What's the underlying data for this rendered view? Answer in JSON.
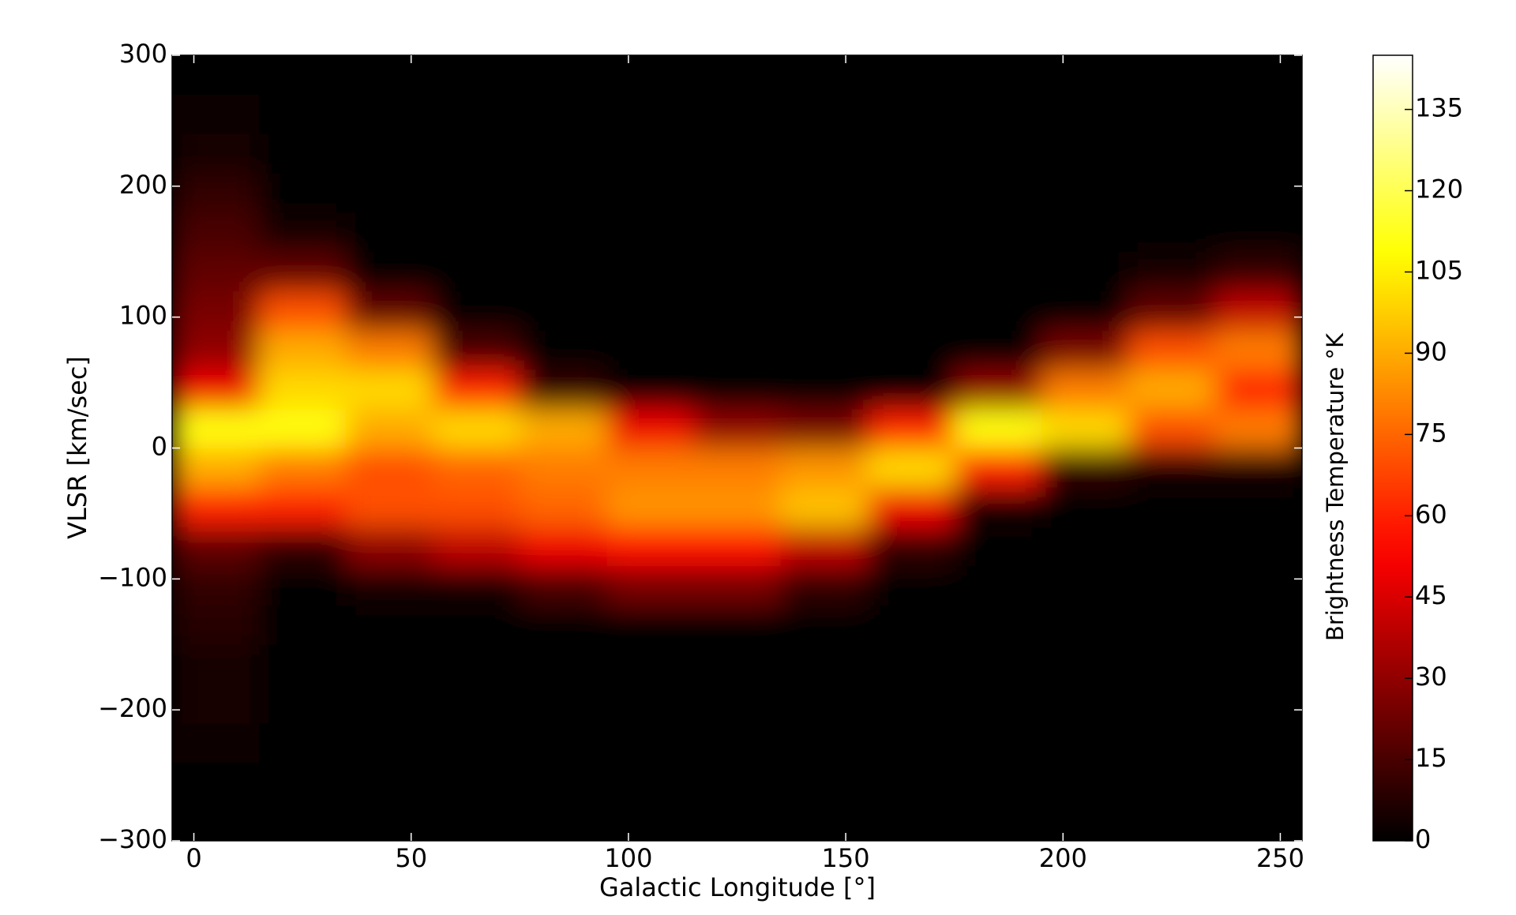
{
  "chart_data": {
    "type": "heatmap",
    "xlabel": "Galactic Longitude [°]",
    "ylabel": "VLSR [km/sec]",
    "colorbar_label": "Brightness Temperature °K",
    "colormap": "hot",
    "x_bins": [
      -5,
      15,
      35,
      55,
      75,
      95,
      115,
      135,
      155,
      175,
      195,
      215,
      235,
      255
    ],
    "y_bins": [
      -300,
      -270,
      -240,
      -210,
      -180,
      -150,
      -120,
      -90,
      -60,
      -30,
      0,
      30,
      60,
      90,
      120,
      150,
      180,
      210,
      240,
      270,
      300
    ],
    "values": [
      [
        0,
        0,
        0,
        0,
        0,
        0,
        0,
        0,
        0,
        0,
        0,
        0,
        0
      ],
      [
        0,
        0,
        0,
        0,
        0,
        0,
        0,
        0,
        0,
        0,
        0,
        0,
        0
      ],
      [
        3,
        0,
        0,
        0,
        0,
        0,
        0,
        0,
        0,
        0,
        0,
        0,
        0
      ],
      [
        5,
        0,
        0,
        0,
        0,
        0,
        0,
        0,
        0,
        0,
        0,
        0,
        0
      ],
      [
        5,
        0,
        0,
        0,
        0,
        0,
        0,
        0,
        0,
        0,
        0,
        0,
        0
      ],
      [
        8,
        0,
        0,
        0,
        0,
        0,
        0,
        0,
        0,
        0,
        0,
        0,
        0
      ],
      [
        10,
        0,
        5,
        5,
        15,
        25,
        25,
        10,
        0,
        0,
        0,
        0,
        0
      ],
      [
        20,
        10,
        30,
        40,
        50,
        55,
        55,
        40,
        10,
        0,
        0,
        0,
        0
      ],
      [
        60,
        60,
        70,
        70,
        75,
        85,
        85,
        95,
        50,
        5,
        0,
        0,
        0
      ],
      [
        90,
        80,
        70,
        75,
        80,
        80,
        80,
        85,
        100,
        60,
        10,
        5,
        5
      ],
      [
        110,
        110,
        90,
        100,
        90,
        50,
        30,
        25,
        60,
        110,
        100,
        70,
        80
      ],
      [
        50,
        100,
        100,
        60,
        10,
        0,
        0,
        0,
        0,
        30,
        80,
        90,
        60
      ],
      [
        30,
        90,
        80,
        15,
        0,
        0,
        0,
        0,
        0,
        0,
        25,
        70,
        80
      ],
      [
        25,
        70,
        20,
        0,
        0,
        0,
        0,
        0,
        0,
        0,
        0,
        20,
        40
      ],
      [
        20,
        20,
        0,
        0,
        0,
        0,
        0,
        0,
        0,
        0,
        0,
        5,
        10
      ],
      [
        15,
        5,
        0,
        0,
        0,
        0,
        0,
        0,
        0,
        0,
        0,
        0,
        0
      ],
      [
        10,
        0,
        0,
        0,
        0,
        0,
        0,
        0,
        0,
        0,
        0,
        0,
        0
      ],
      [
        5,
        0,
        0,
        0,
        0,
        0,
        0,
        0,
        0,
        0,
        0,
        0,
        0
      ],
      [
        3,
        0,
        0,
        0,
        0,
        0,
        0,
        0,
        0,
        0,
        0,
        0,
        0
      ],
      [
        0,
        0,
        0,
        0,
        0,
        0,
        0,
        0,
        0,
        0,
        0,
        0,
        0
      ]
    ],
    "xlim": [
      -5,
      255
    ],
    "xticks": [
      0,
      50,
      100,
      150,
      200,
      250
    ],
    "ylim": [
      -300,
      300
    ],
    "yticks": [
      {
        "value": -300,
        "label": "−300"
      },
      {
        "value": -200,
        "label": "−200"
      },
      {
        "value": -100,
        "label": "−100"
      },
      0,
      100,
      200,
      300
    ],
    "clim": [
      0,
      145
    ],
    "cticks": [
      0,
      15,
      30,
      45,
      60,
      75,
      90,
      105,
      120,
      135
    ]
  }
}
